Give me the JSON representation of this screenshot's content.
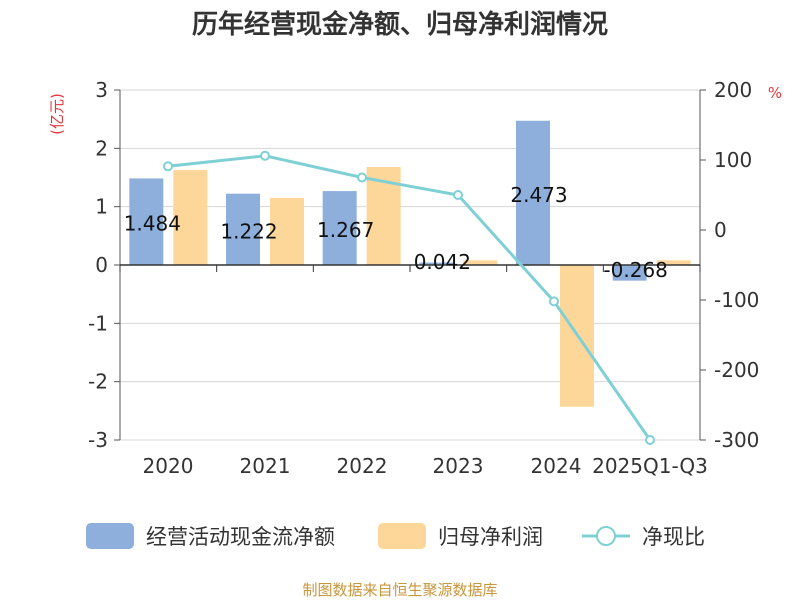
{
  "chart_data": {
    "type": "bar",
    "title": "历年经营现金净额、归母净利润情况",
    "categories": [
      "2020",
      "2021",
      "2022",
      "2023",
      "2024",
      "2025Q1-Q3"
    ],
    "y_left": {
      "unit": "(亿元)",
      "min": -3,
      "max": 3,
      "ticks": [
        "-3",
        "-2",
        "-1",
        "0",
        "1",
        "2",
        "3"
      ]
    },
    "y_right": {
      "unit": "%",
      "min": -300,
      "max": 200,
      "ticks": [
        "-300",
        "-200",
        "-100",
        "0",
        "100",
        "200"
      ]
    },
    "grid": true,
    "legend_position": "bottom",
    "series": [
      {
        "name": "经营活动现金流净额",
        "type": "bar",
        "axis": "left",
        "color": "#8eaedb",
        "values": [
          1.484,
          1.222,
          1.267,
          0.042,
          2.473,
          -0.268
        ],
        "labels": [
          "1.484",
          "1.222",
          "1.267",
          "0.042",
          "2.473",
          "-0.268"
        ]
      },
      {
        "name": "归母净利润",
        "type": "bar",
        "axis": "left",
        "color": "#fdd699",
        "values": [
          1.63,
          1.15,
          1.68,
          0.08,
          -2.43,
          0.08
        ]
      },
      {
        "name": "净现比",
        "type": "line",
        "axis": "right",
        "color": "#7fd0d5",
        "values": [
          91,
          106,
          75,
          50,
          -102,
          -300
        ]
      }
    ]
  },
  "source": "制图数据来自恒生聚源数据库"
}
